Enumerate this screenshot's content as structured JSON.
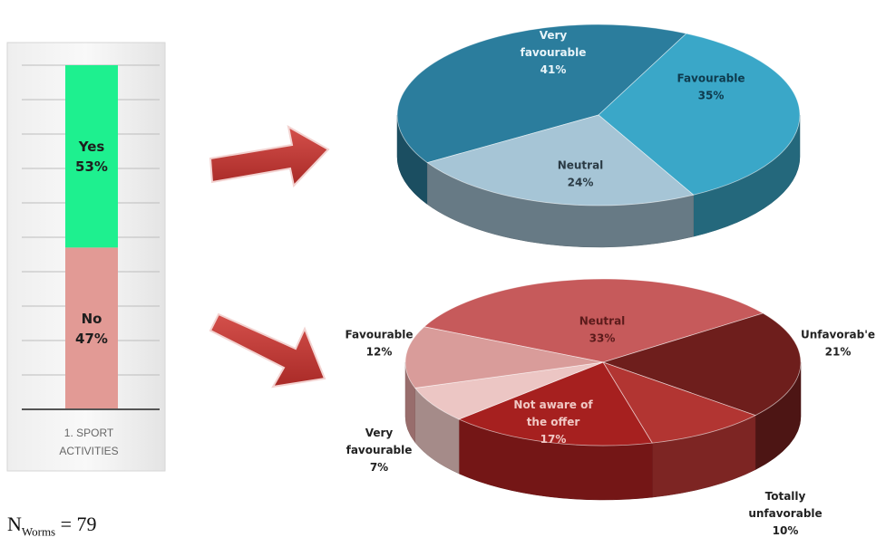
{
  "chart_data": [
    {
      "type": "bar",
      "stacked": true,
      "categories": [
        "1. SPORT ACTIVITIES"
      ],
      "series": [
        {
          "name": "Yes",
          "values": [
            53
          ],
          "color": "#1ef08f"
        },
        {
          "name": "No",
          "values": [
            47
          ],
          "color": "#e29a95"
        }
      ],
      "data_labels": [
        "Yes\n53%",
        "No\n47%"
      ],
      "ylim": [
        0,
        100
      ],
      "grid": true
    },
    {
      "type": "pie",
      "style": "3d",
      "slices": [
        {
          "label": "Very favourable",
          "value": 41,
          "text": "Very\nfavourable\n41%",
          "color": "#2b7d9d"
        },
        {
          "label": "Favourable",
          "value": 35,
          "text": "Favourable\n35%",
          "color": "#3aa7c8"
        },
        {
          "label": "Neutral",
          "value": 24,
          "text": "Neutral\n24%",
          "color": "#a6c5d6"
        }
      ]
    },
    {
      "type": "pie",
      "style": "3d",
      "slices": [
        {
          "label": "Neutral",
          "value": 33,
          "text": "Neutral\n33%",
          "color": "#c65a5b"
        },
        {
          "label": "Unfavorable",
          "value": 21,
          "text": "Unfavorab'e\n21%",
          "color": "#6e1e1c"
        },
        {
          "label": "Totally unfavorable",
          "value": 10,
          "text": "Totally\nunfavorable\n10%",
          "color": "#b23532"
        },
        {
          "label": "Not aware of the offer",
          "value": 17,
          "text": "Not aware of\nthe offer\n17%",
          "color": "#a6201f"
        },
        {
          "label": "Very favourable",
          "value": 7,
          "text": "Very\nfavourable\n7%",
          "color": "#ecc6c4"
        },
        {
          "label": "Favourable",
          "value": 12,
          "text": "Favourable\n12%",
          "color": "#d99c9a"
        }
      ]
    }
  ],
  "arrow_color": "#c23a36",
  "footnote": {
    "base": "N",
    "sub": "Worms",
    "rest": " = 79"
  }
}
